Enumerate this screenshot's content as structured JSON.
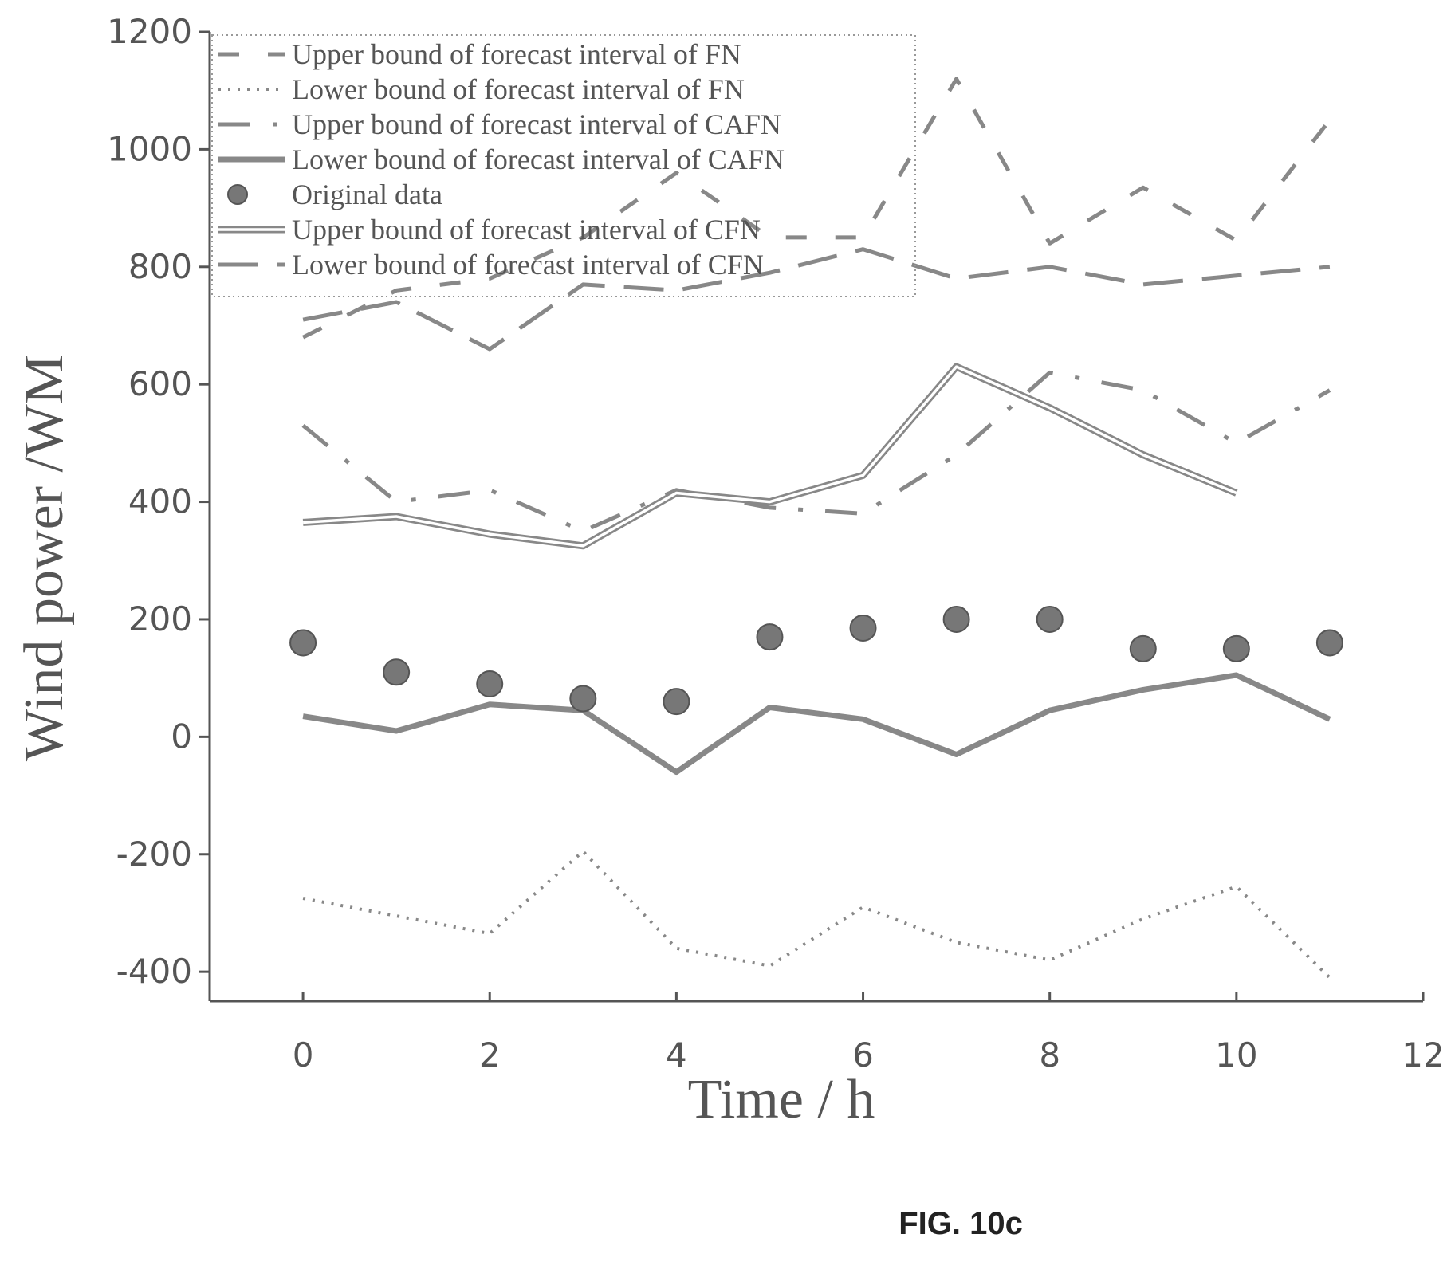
{
  "chart_data": {
    "type": "line",
    "title": "",
    "xlabel": "Time / h",
    "ylabel": "Wind power /WM",
    "xlim": [
      -1,
      12
    ],
    "ylim": [
      -450,
      1200
    ],
    "xticks": [
      "0",
      "2",
      "4",
      "6",
      "8",
      "10",
      "12"
    ],
    "xtick_values": [
      0,
      2,
      4,
      6,
      8,
      10,
      12
    ],
    "yticks": [
      "1200",
      "1000",
      "800",
      "600",
      "400",
      "200",
      "0",
      "-200",
      "-400"
    ],
    "ytick_values": [
      1200,
      1000,
      800,
      600,
      400,
      200,
      0,
      -200,
      -400
    ],
    "grid": false,
    "legend_position": "top-left",
    "x": [
      0,
      1,
      2,
      3,
      4,
      5,
      6,
      7,
      8,
      9,
      10,
      11
    ],
    "series": [
      {
        "name": "Upper bound of forecast interval of FN",
        "style": "dashed",
        "values": [
          680,
          760,
          780,
          850,
          960,
          850,
          850,
          1120,
          840,
          935,
          845,
          1050
        ]
      },
      {
        "name": "Lower bound of forecast interval of FN",
        "style": "dotted",
        "values": [
          -275,
          -305,
          -335,
          -195,
          -360,
          -390,
          -290,
          -350,
          -380,
          -310,
          -255,
          -410
        ]
      },
      {
        "name": "Upper bound of forecast interval of CAFN",
        "style": "dashdot",
        "values": [
          530,
          400,
          420,
          350,
          420,
          390,
          380,
          480,
          620,
          590,
          500,
          590
        ]
      },
      {
        "name": "Lower bound of forecast interval of CAFN",
        "style": "solid",
        "values": [
          35,
          10,
          55,
          45,
          -60,
          50,
          30,
          -30,
          45,
          80,
          105,
          30
        ]
      },
      {
        "name": "Original data",
        "style": "markers",
        "values": [
          160,
          110,
          90,
          65,
          60,
          170,
          185,
          200,
          200,
          150,
          150,
          160
        ]
      },
      {
        "name": "Upper bound of forecast interval of CFN",
        "style": "double",
        "x": [
          0,
          1,
          2,
          3,
          4,
          5,
          6,
          7,
          8,
          9,
          10
        ],
        "values": [
          365,
          375,
          345,
          325,
          415,
          400,
          445,
          630,
          560,
          480,
          415
        ]
      },
      {
        "name": "Lower bound of forecast interval of CFN",
        "style": "longdash",
        "values": [
          710,
          740,
          660,
          770,
          760,
          790,
          830,
          780,
          800,
          770,
          785,
          800
        ]
      }
    ],
    "annotations": [
      "FIG. 10c"
    ]
  },
  "colors": {
    "axis": "#555555",
    "series": "#888888",
    "markers": "#777777",
    "text": "#555555"
  }
}
